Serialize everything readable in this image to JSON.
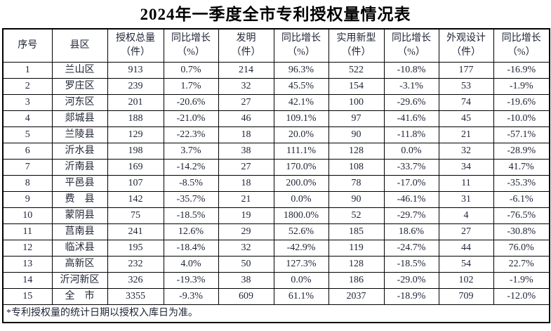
{
  "title": "2024年一季度全市专利授权量情况表",
  "colors": {
    "background": "#ffffff",
    "border": "#000000",
    "title_text": "#000000",
    "cell_text": "#202637"
  },
  "table": {
    "headers": [
      "序号",
      "县区",
      "授权总量\n（件）",
      "同比增长\n（%）",
      "发明\n（件）",
      "同比增长\n（%）",
      "实用新型\n（件）",
      "同比增长\n（%）",
      "外观设计\n（件）",
      "同比增长\n（%）"
    ],
    "rows": [
      [
        "1",
        "兰山区",
        "913",
        "0.7%",
        "214",
        "96.3%",
        "522",
        "-10.8%",
        "177",
        "-16.9%"
      ],
      [
        "2",
        "罗庄区",
        "239",
        "1.7%",
        "32",
        "45.5%",
        "154",
        "-3.1%",
        "53",
        "-1.9%"
      ],
      [
        "3",
        "河东区",
        "201",
        "-20.6%",
        "27",
        "42.1%",
        "100",
        "-29.6%",
        "74",
        "-19.6%"
      ],
      [
        "4",
        "郯城县",
        "188",
        "-21.0%",
        "46",
        "109.1%",
        "97",
        "-41.6%",
        "45",
        "-10.0%"
      ],
      [
        "5",
        "兰陵县",
        "129",
        "-22.3%",
        "18",
        "20.0%",
        "90",
        "-11.8%",
        "21",
        "-57.1%"
      ],
      [
        "6",
        "沂水县",
        "198",
        "3.7%",
        "38",
        "111.1%",
        "128",
        "0.0%",
        "32",
        "-28.9%"
      ],
      [
        "7",
        "沂南县",
        "169",
        "-14.2%",
        "27",
        "170.0%",
        "108",
        "-33.7%",
        "34",
        "41.7%"
      ],
      [
        "8",
        "平邑县",
        "107",
        "-8.5%",
        "18",
        "200.0%",
        "78",
        "-17.0%",
        "11",
        "-35.3%"
      ],
      [
        "9",
        "费　县",
        "142",
        "-35.7%",
        "21",
        "0.0%",
        "90",
        "-46.1%",
        "31",
        "-6.1%"
      ],
      [
        "10",
        "蒙阴县",
        "75",
        "-18.5%",
        "19",
        "1800.0%",
        "52",
        "-29.7%",
        "4",
        "-76.5%"
      ],
      [
        "11",
        "莒南县",
        "241",
        "12.6%",
        "29",
        "52.6%",
        "185",
        "18.6%",
        "27",
        "-30.8%"
      ],
      [
        "12",
        "临沭县",
        "195",
        "-18.4%",
        "32",
        "-42.9%",
        "119",
        "-24.7%",
        "44",
        "76.0%"
      ],
      [
        "13",
        "高新区",
        "232",
        "4.0%",
        "50",
        "127.3%",
        "128",
        "-18.5%",
        "54",
        "22.7%"
      ],
      [
        "14",
        "沂河新区",
        "326",
        "-19.3%",
        "38",
        "0.0%",
        "186",
        "-29.0%",
        "102",
        "-1.9%"
      ],
      [
        "15",
        "全　市",
        "3355",
        "-9.3%",
        "609",
        "61.1%",
        "2037",
        "-18.9%",
        "709",
        "-12.0%"
      ]
    ],
    "footnote": "*专利授权量的统计日期以授权入库日为准。"
  }
}
